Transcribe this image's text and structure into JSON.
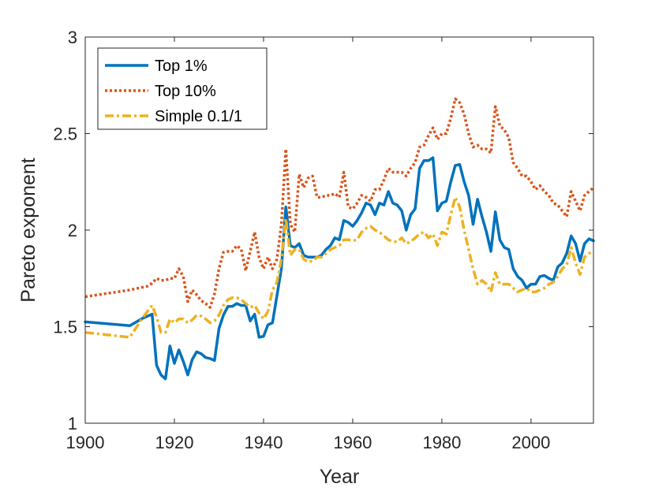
{
  "chart_data": {
    "type": "line",
    "title": "",
    "xlabel": "Year",
    "ylabel": "Pareto exponent",
    "xlim": [
      1900,
      2014
    ],
    "ylim": [
      1,
      3
    ],
    "xticks": [
      1900,
      1920,
      1940,
      1960,
      1980,
      2000
    ],
    "yticks": [
      1,
      1.5,
      2,
      2.5,
      3
    ],
    "xtick_labels": [
      "1900",
      "1920",
      "1940",
      "1960",
      "1980",
      "2000"
    ],
    "ytick_labels": [
      "1",
      "1.5",
      "2",
      "2.5",
      "3"
    ],
    "grid": false,
    "legend_position": "top-left",
    "series": [
      {
        "name": "Top 1%",
        "color": "#0072BD",
        "style": "solid",
        "points": [
          [
            1900,
            1.525
          ],
          [
            1910,
            1.505
          ],
          [
            1913,
            1.545
          ],
          [
            1915,
            1.565
          ],
          [
            1916,
            1.3
          ],
          [
            1917,
            1.25
          ],
          [
            1918,
            1.23
          ],
          [
            1919,
            1.4
          ],
          [
            1920,
            1.31
          ],
          [
            1921,
            1.38
          ],
          [
            1922,
            1.32
          ],
          [
            1923,
            1.25
          ],
          [
            1924,
            1.33
          ],
          [
            1925,
            1.37
          ],
          [
            1926,
            1.36
          ],
          [
            1927,
            1.34
          ],
          [
            1928,
            1.335
          ],
          [
            1929,
            1.325
          ],
          [
            1930,
            1.49
          ],
          [
            1931,
            1.56
          ],
          [
            1932,
            1.605
          ],
          [
            1933,
            1.605
          ],
          [
            1934,
            1.62
          ],
          [
            1935,
            1.61
          ],
          [
            1936,
            1.61
          ],
          [
            1937,
            1.53
          ],
          [
            1938,
            1.565
          ],
          [
            1939,
            1.445
          ],
          [
            1940,
            1.45
          ],
          [
            1941,
            1.51
          ],
          [
            1942,
            1.52
          ],
          [
            1943,
            1.66
          ],
          [
            1944,
            1.8
          ],
          [
            1945,
            2.12
          ],
          [
            1946,
            1.92
          ],
          [
            1947,
            1.91
          ],
          [
            1948,
            1.93
          ],
          [
            1949,
            1.87
          ],
          [
            1950,
            1.86
          ],
          [
            1951,
            1.86
          ],
          [
            1952,
            1.86
          ],
          [
            1953,
            1.87
          ],
          [
            1954,
            1.9
          ],
          [
            1955,
            1.92
          ],
          [
            1956,
            1.96
          ],
          [
            1957,
            1.95
          ],
          [
            1958,
            2.05
          ],
          [
            1959,
            2.04
          ],
          [
            1960,
            2.02
          ],
          [
            1961,
            2.05
          ],
          [
            1962,
            2.09
          ],
          [
            1963,
            2.14
          ],
          [
            1964,
            2.13
          ],
          [
            1965,
            2.08
          ],
          [
            1966,
            2.14
          ],
          [
            1967,
            2.13
          ],
          [
            1968,
            2.2
          ],
          [
            1969,
            2.14
          ],
          [
            1970,
            2.13
          ],
          [
            1971,
            2.1
          ],
          [
            1972,
            2.0
          ],
          [
            1973,
            2.08
          ],
          [
            1974,
            2.11
          ],
          [
            1975,
            2.32
          ],
          [
            1976,
            2.36
          ],
          [
            1977,
            2.36
          ],
          [
            1978,
            2.375
          ],
          [
            1979,
            2.1
          ],
          [
            1980,
            2.14
          ],
          [
            1981,
            2.15
          ],
          [
            1982,
            2.25
          ],
          [
            1983,
            2.335
          ],
          [
            1984,
            2.34
          ],
          [
            1985,
            2.25
          ],
          [
            1986,
            2.18
          ],
          [
            1987,
            2.03
          ],
          [
            1988,
            2.16
          ],
          [
            1989,
            2.07
          ],
          [
            1990,
            1.99
          ],
          [
            1991,
            1.89
          ],
          [
            1992,
            2.095
          ],
          [
            1993,
            1.95
          ],
          [
            1994,
            1.91
          ],
          [
            1995,
            1.9
          ],
          [
            1996,
            1.8
          ],
          [
            1997,
            1.76
          ],
          [
            1998,
            1.74
          ],
          [
            1999,
            1.7
          ],
          [
            2000,
            1.72
          ],
          [
            2001,
            1.72
          ],
          [
            2002,
            1.76
          ],
          [
            2003,
            1.765
          ],
          [
            2004,
            1.75
          ],
          [
            2005,
            1.74
          ],
          [
            2006,
            1.81
          ],
          [
            2007,
            1.83
          ],
          [
            2008,
            1.88
          ],
          [
            2009,
            1.97
          ],
          [
            2010,
            1.93
          ],
          [
            2011,
            1.84
          ],
          [
            2012,
            1.93
          ],
          [
            2013,
            1.955
          ],
          [
            2014,
            1.945
          ]
        ]
      },
      {
        "name": "Top 10%",
        "color": "#D95319",
        "style": "dotted",
        "points": [
          [
            1900,
            1.655
          ],
          [
            1910,
            1.69
          ],
          [
            1914,
            1.71
          ],
          [
            1915,
            1.725
          ],
          [
            1916,
            1.75
          ],
          [
            1917,
            1.74
          ],
          [
            1918,
            1.74
          ],
          [
            1919,
            1.75
          ],
          [
            1920,
            1.75
          ],
          [
            1921,
            1.8
          ],
          [
            1922,
            1.76
          ],
          [
            1923,
            1.63
          ],
          [
            1924,
            1.69
          ],
          [
            1925,
            1.665
          ],
          [
            1926,
            1.635
          ],
          [
            1927,
            1.62
          ],
          [
            1928,
            1.6
          ],
          [
            1929,
            1.67
          ],
          [
            1930,
            1.8
          ],
          [
            1931,
            1.885
          ],
          [
            1932,
            1.89
          ],
          [
            1933,
            1.89
          ],
          [
            1934,
            1.92
          ],
          [
            1935,
            1.9
          ],
          [
            1936,
            1.79
          ],
          [
            1937,
            1.89
          ],
          [
            1938,
            1.99
          ],
          [
            1939,
            1.86
          ],
          [
            1940,
            1.8
          ],
          [
            1941,
            1.86
          ],
          [
            1942,
            1.8
          ],
          [
            1943,
            1.85
          ],
          [
            1944,
            2.03
          ],
          [
            1945,
            2.42
          ],
          [
            1946,
            2.03
          ],
          [
            1947,
            1.99
          ],
          [
            1948,
            2.29
          ],
          [
            1949,
            2.22
          ],
          [
            1950,
            2.27
          ],
          [
            1951,
            2.28
          ],
          [
            1952,
            2.17
          ],
          [
            1953,
            2.17
          ],
          [
            1954,
            2.18
          ],
          [
            1955,
            2.18
          ],
          [
            1956,
            2.19
          ],
          [
            1957,
            2.17
          ],
          [
            1958,
            2.3
          ],
          [
            1959,
            2.12
          ],
          [
            1960,
            2.11
          ],
          [
            1961,
            2.14
          ],
          [
            1962,
            2.18
          ],
          [
            1963,
            2.17
          ],
          [
            1964,
            2.15
          ],
          [
            1965,
            2.21
          ],
          [
            1966,
            2.21
          ],
          [
            1967,
            2.26
          ],
          [
            1968,
            2.32
          ],
          [
            1969,
            2.3
          ],
          [
            1970,
            2.3
          ],
          [
            1971,
            2.3
          ],
          [
            1972,
            2.28
          ],
          [
            1973,
            2.32
          ],
          [
            1974,
            2.35
          ],
          [
            1975,
            2.43
          ],
          [
            1976,
            2.44
          ],
          [
            1977,
            2.49
          ],
          [
            1978,
            2.53
          ],
          [
            1979,
            2.47
          ],
          [
            1980,
            2.5
          ],
          [
            1981,
            2.5
          ],
          [
            1982,
            2.58
          ],
          [
            1983,
            2.68
          ],
          [
            1984,
            2.66
          ],
          [
            1985,
            2.6
          ],
          [
            1986,
            2.5
          ],
          [
            1987,
            2.43
          ],
          [
            1988,
            2.44
          ],
          [
            1989,
            2.42
          ],
          [
            1990,
            2.42
          ],
          [
            1991,
            2.4
          ],
          [
            1992,
            2.64
          ],
          [
            1993,
            2.54
          ],
          [
            1994,
            2.52
          ],
          [
            1995,
            2.48
          ],
          [
            1996,
            2.35
          ],
          [
            1997,
            2.32
          ],
          [
            1998,
            2.28
          ],
          [
            1999,
            2.28
          ],
          [
            2000,
            2.25
          ],
          [
            2001,
            2.21
          ],
          [
            2002,
            2.23
          ],
          [
            2003,
            2.2
          ],
          [
            2004,
            2.18
          ],
          [
            2005,
            2.14
          ],
          [
            2006,
            2.13
          ],
          [
            2007,
            2.1
          ],
          [
            2008,
            2.07
          ],
          [
            2009,
            2.2
          ],
          [
            2010,
            2.15
          ],
          [
            2011,
            2.1
          ],
          [
            2012,
            2.18
          ],
          [
            2013,
            2.2
          ],
          [
            2014,
            2.22
          ]
        ]
      },
      {
        "name": "Simple 0.1/1",
        "color": "#EDB120",
        "style": "dashdot",
        "points": [
          [
            1900,
            1.47
          ],
          [
            1910,
            1.445
          ],
          [
            1913,
            1.55
          ],
          [
            1915,
            1.61
          ],
          [
            1916,
            1.55
          ],
          [
            1917,
            1.47
          ],
          [
            1918,
            1.47
          ],
          [
            1919,
            1.54
          ],
          [
            1920,
            1.52
          ],
          [
            1921,
            1.54
          ],
          [
            1922,
            1.54
          ],
          [
            1923,
            1.52
          ],
          [
            1924,
            1.535
          ],
          [
            1925,
            1.56
          ],
          [
            1926,
            1.555
          ],
          [
            1927,
            1.54
          ],
          [
            1928,
            1.52
          ],
          [
            1929,
            1.53
          ],
          [
            1930,
            1.56
          ],
          [
            1931,
            1.61
          ],
          [
            1932,
            1.64
          ],
          [
            1933,
            1.65
          ],
          [
            1934,
            1.65
          ],
          [
            1935,
            1.64
          ],
          [
            1936,
            1.62
          ],
          [
            1937,
            1.6
          ],
          [
            1938,
            1.61
          ],
          [
            1939,
            1.57
          ],
          [
            1940,
            1.54
          ],
          [
            1941,
            1.58
          ],
          [
            1942,
            1.69
          ],
          [
            1943,
            1.73
          ],
          [
            1944,
            1.85
          ],
          [
            1945,
            2.06
          ],
          [
            1946,
            1.87
          ],
          [
            1947,
            1.9
          ],
          [
            1948,
            1.9
          ],
          [
            1949,
            1.85
          ],
          [
            1950,
            1.835
          ],
          [
            1951,
            1.84
          ],
          [
            1952,
            1.86
          ],
          [
            1953,
            1.86
          ],
          [
            1954,
            1.88
          ],
          [
            1955,
            1.9
          ],
          [
            1956,
            1.91
          ],
          [
            1957,
            1.92
          ],
          [
            1958,
            1.95
          ],
          [
            1959,
            1.95
          ],
          [
            1960,
            1.945
          ],
          [
            1961,
            1.95
          ],
          [
            1962,
            1.99
          ],
          [
            1963,
            2.01
          ],
          [
            1964,
            2.02
          ],
          [
            1965,
            2.0
          ],
          [
            1966,
            1.99
          ],
          [
            1967,
            1.97
          ],
          [
            1968,
            1.95
          ],
          [
            1969,
            1.94
          ],
          [
            1970,
            1.94
          ],
          [
            1971,
            1.96
          ],
          [
            1972,
            1.93
          ],
          [
            1973,
            1.94
          ],
          [
            1974,
            1.96
          ],
          [
            1975,
            1.98
          ],
          [
            1976,
            1.99
          ],
          [
            1977,
            1.96
          ],
          [
            1978,
            1.98
          ],
          [
            1979,
            1.92
          ],
          [
            1980,
            1.99
          ],
          [
            1981,
            1.98
          ],
          [
            1982,
            2.08
          ],
          [
            1983,
            2.17
          ],
          [
            1984,
            2.12
          ],
          [
            1985,
            2.0
          ],
          [
            1986,
            1.9
          ],
          [
            1987,
            1.8
          ],
          [
            1988,
            1.72
          ],
          [
            1989,
            1.74
          ],
          [
            1990,
            1.72
          ],
          [
            1991,
            1.68
          ],
          [
            1992,
            1.78
          ],
          [
            1993,
            1.72
          ],
          [
            1994,
            1.72
          ],
          [
            1995,
            1.72
          ],
          [
            1996,
            1.7
          ],
          [
            1997,
            1.68
          ],
          [
            1998,
            1.69
          ],
          [
            1999,
            1.7
          ],
          [
            2000,
            1.68
          ],
          [
            2001,
            1.68
          ],
          [
            2002,
            1.69
          ],
          [
            2003,
            1.7
          ],
          [
            2004,
            1.72
          ],
          [
            2005,
            1.73
          ],
          [
            2006,
            1.76
          ],
          [
            2007,
            1.8
          ],
          [
            2008,
            1.82
          ],
          [
            2009,
            1.91
          ],
          [
            2010,
            1.83
          ],
          [
            2011,
            1.77
          ],
          [
            2012,
            1.86
          ],
          [
            2013,
            1.88
          ],
          [
            2014,
            1.885
          ]
        ]
      }
    ]
  }
}
